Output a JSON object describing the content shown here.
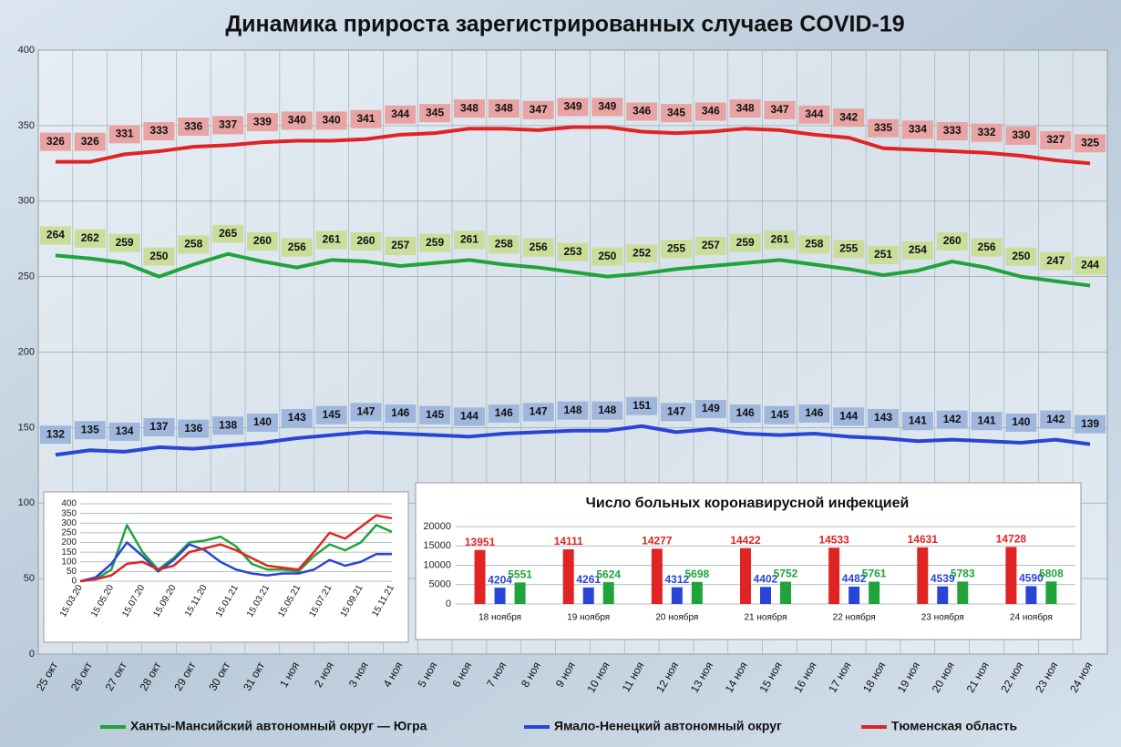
{
  "chart_data": [
    {
      "type": "line",
      "title": "Динамика прироста зарегистрированных случаев COVID-19",
      "categories": [
        "25 окт",
        "26 окт",
        "27 окт",
        "28 окт",
        "29 окт",
        "30 окт",
        "31 окт",
        "1 ноя",
        "2 ноя",
        "3 ноя",
        "4 ноя",
        "5 ноя",
        "6 ноя",
        "7 ноя",
        "8 ноя",
        "9 ноя",
        "10 ноя",
        "11 ноя",
        "12 ноя",
        "13 ноя",
        "14 ноя",
        "15 ноя",
        "16 ноя",
        "17 ноя",
        "18 ноя",
        "19 ноя",
        "20 ноя",
        "21 ноя",
        "22 ноя",
        "23 ноя",
        "24 ноя"
      ],
      "series": [
        {
          "name": "Ханты-Мансийский автономный округ — Югра",
          "color": "#1fa33a",
          "values": [
            264,
            262,
            259,
            250,
            258,
            265,
            260,
            256,
            261,
            260,
            257,
            259,
            261,
            258,
            256,
            253,
            250,
            252,
            255,
            257,
            259,
            261,
            258,
            255,
            251,
            254,
            260,
            256,
            250,
            247,
            244
          ]
        },
        {
          "name": "Ямало-Ненецкий автономный округ",
          "color": "#2a45d6",
          "values": [
            132,
            135,
            134,
            137,
            136,
            138,
            140,
            143,
            145,
            147,
            146,
            145,
            144,
            146,
            147,
            148,
            148,
            151,
            147,
            149,
            146,
            145,
            146,
            144,
            143,
            141,
            142,
            141,
            140,
            142,
            139
          ]
        },
        {
          "name": "Тюменская область",
          "color": "#e02424",
          "values": [
            326,
            326,
            331,
            333,
            336,
            337,
            339,
            340,
            340,
            341,
            344,
            345,
            348,
            348,
            347,
            349,
            349,
            346,
            345,
            346,
            348,
            347,
            344,
            342,
            335,
            334,
            333,
            332,
            330,
            327,
            325
          ]
        }
      ],
      "ylim": [
        0,
        400
      ],
      "yticks": [
        0,
        50,
        100,
        150,
        200,
        250,
        300,
        350,
        400
      ],
      "grid": true
    },
    {
      "type": "line",
      "categories": [
        "15.03.20",
        null,
        "15.05.20",
        null,
        "15.07.20",
        null,
        "15.09.20",
        null,
        "15.11.20",
        null,
        "15.01.21",
        null,
        "15.03.21",
        null,
        "15.05.21",
        null,
        "15.07.21",
        null,
        "15.09.21",
        null,
        "15.11.21"
      ],
      "series": [
        {
          "color": "#1fa33a",
          "values": [
            0,
            10,
            60,
            290,
            150,
            60,
            120,
            200,
            210,
            230,
            180,
            90,
            60,
            60,
            50,
            130,
            190,
            160,
            200,
            290,
            255
          ]
        },
        {
          "color": "#2a45d6",
          "values": [
            0,
            20,
            90,
            200,
            130,
            50,
            110,
            190,
            160,
            100,
            60,
            40,
            30,
            40,
            40,
            60,
            110,
            80,
            100,
            140,
            140
          ]
        },
        {
          "color": "#e02424",
          "values": [
            0,
            10,
            30,
            90,
            100,
            60,
            80,
            150,
            170,
            190,
            160,
            120,
            80,
            70,
            60,
            150,
            250,
            220,
            280,
            340,
            325
          ]
        }
      ],
      "ylim": [
        0,
        400
      ],
      "yticks": [
        0,
        50,
        100,
        150,
        200,
        250,
        300,
        350,
        400
      ],
      "grid": true
    },
    {
      "type": "bar",
      "title": "Число больных коронавирусной инфекцией",
      "categories": [
        "18 ноября",
        "19 ноября",
        "20 ноября",
        "21 ноября",
        "22 ноября",
        "23 ноября",
        "24 ноября"
      ],
      "series": [
        {
          "color": "#e02424",
          "values": [
            13951,
            14111,
            14277,
            14422,
            14533,
            14631,
            14728
          ]
        },
        {
          "color": "#2a45d6",
          "values": [
            4204,
            4261,
            4312,
            4402,
            4482,
            4539,
            4590
          ]
        },
        {
          "color": "#1fa33a",
          "values": [
            5551,
            5624,
            5698,
            5752,
            5761,
            5783,
            5808
          ]
        }
      ],
      "ylim": [
        0,
        20000
      ],
      "yticks": [
        0,
        5000,
        10000,
        15000,
        20000
      ],
      "grid": true
    }
  ]
}
